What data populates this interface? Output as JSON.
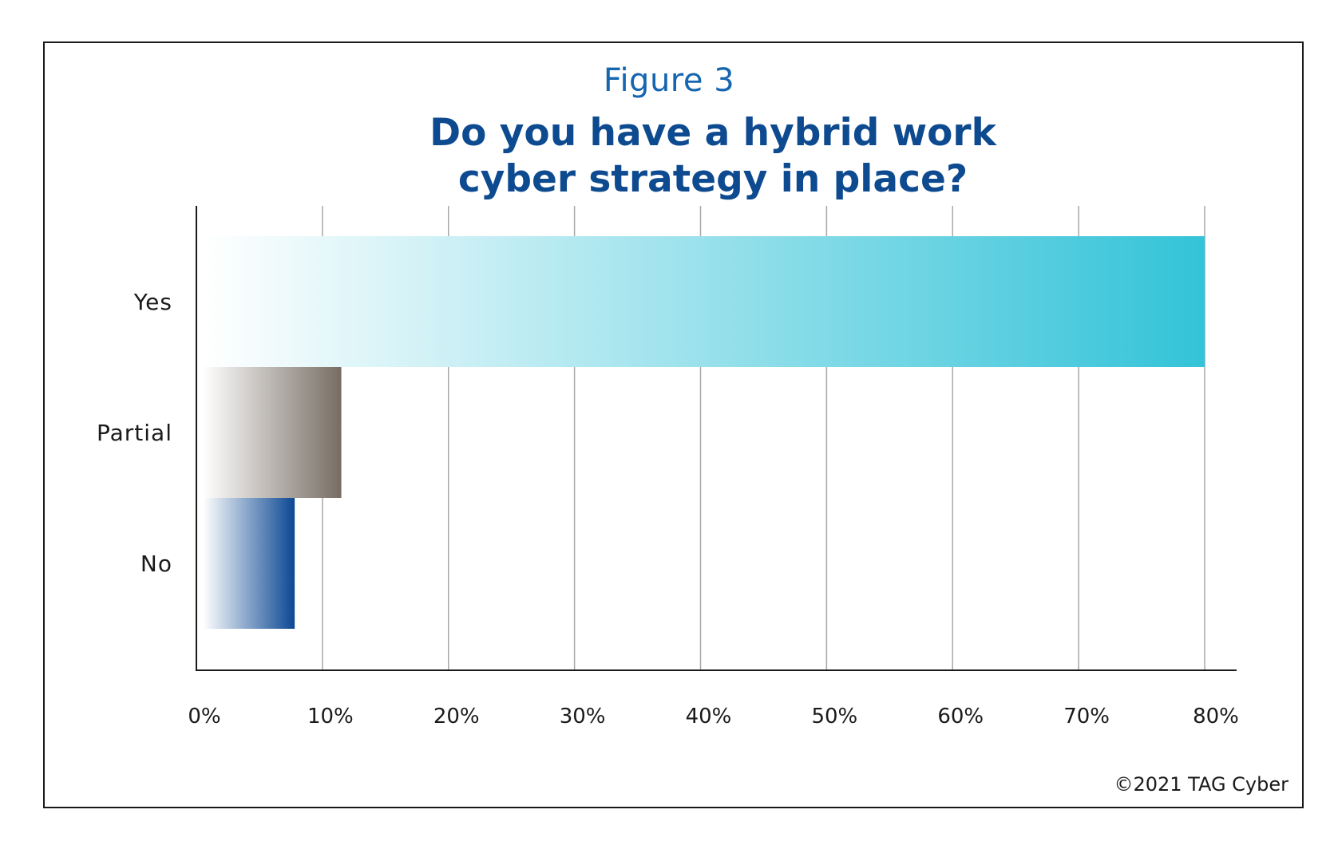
{
  "figure_label": "Figure 3",
  "copyright": "©2021 TAG Cyber",
  "chart_data": {
    "type": "bar",
    "orientation": "horizontal",
    "title_lines": [
      "Do you have a hybrid work",
      "cyber strategy in place?"
    ],
    "categories": [
      "Yes",
      "Partial",
      "No"
    ],
    "values": [
      80,
      11.5,
      7.8
    ],
    "value_unit": "%",
    "xlim": [
      0,
      80
    ],
    "xticks": [
      0,
      10,
      20,
      30,
      40,
      50,
      60,
      70,
      80
    ],
    "xtick_labels": [
      "0%",
      "10%",
      "20%",
      "30%",
      "40%",
      "50%",
      "60%",
      "70%",
      "80%"
    ],
    "grid": "vertical",
    "legend": "none",
    "colors": {
      "Yes": [
        "#ffffff",
        "#33c3d8"
      ],
      "Partial": [
        "#ffffff",
        "#776d64"
      ],
      "No": [
        "#ffffff",
        "#0c4893"
      ]
    },
    "title_color": "#0d4a8f",
    "figure_label_color": "#1565b0"
  }
}
